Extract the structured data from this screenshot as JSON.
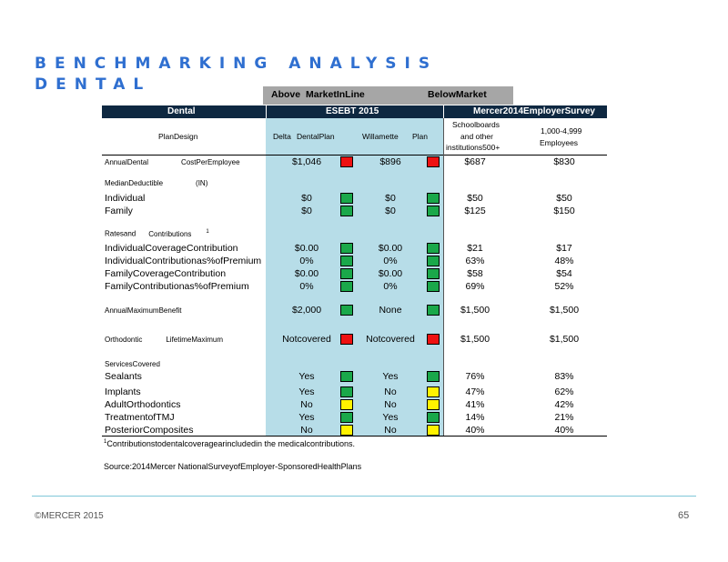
{
  "title_line1": "BENCHMARKING ANALYSIS",
  "title_line2": "DENTAL",
  "legend": {
    "above": "Above",
    "inline": "MarketInLine",
    "below": "BelowMarket"
  },
  "colors": {
    "red": "#ee1111",
    "green": "#1aa84a",
    "yellow": "#fff200",
    "header": "#0e2841",
    "shade": "#b7dde8",
    "title": "#2f6fd0"
  },
  "header": {
    "dental": "Dental",
    "esebt": "ESEBT 2015",
    "mercer": "Mercer2014EmployerSurvey"
  },
  "subheader": {
    "plan_design": "PlanDesign",
    "delta": "Delta",
    "delta_plan": "DentalPlan",
    "willamette": "Willamette",
    "willamette_plan": "Plan",
    "schoolboards_1": "Schoolboards",
    "schoolboards_2": "and other",
    "schoolboards_3": "institutions500+",
    "employees_1": "1,000-4,999",
    "employees_2": "Employees"
  },
  "sections": {
    "deductible": "MedianDeductible",
    "deductible_tag": "(IN)",
    "rates": "Ratesand",
    "rates_2": "Contributions",
    "rates_sup": "1",
    "services": "ServicesCovered"
  },
  "rows": [
    {
      "label": "AnnualDental",
      "label_b": "CostPerEmployee",
      "small": true,
      "delta": "$1,046",
      "sq1": "red",
      "willamette": "$896",
      "sq2": "red",
      "school": "$687",
      "emp": "$830"
    },
    {
      "label": "Individual",
      "delta": "$0",
      "sq1": "green",
      "willamette": "$0",
      "sq2": "green",
      "school": "$50",
      "emp": "$50"
    },
    {
      "label": "Family",
      "delta": "$0",
      "sq1": "green",
      "willamette": "$0",
      "sq2": "green",
      "school": "$125",
      "emp": "$150"
    },
    {
      "label": "IndividualCoverageContribution",
      "delta": "$0.00",
      "sq1": "green",
      "willamette": "$0.00",
      "sq2": "green",
      "school": "$21",
      "emp": "$17"
    },
    {
      "label": "IndividualContributionas%ofPremium",
      "delta": "0%",
      "sq1": "green",
      "willamette": "0%",
      "sq2": "green",
      "school": "63%",
      "emp": "48%"
    },
    {
      "label": "FamilyCoverageContribution",
      "delta": "$0.00",
      "sq1": "green",
      "willamette": "$0.00",
      "sq2": "green",
      "school": "$58",
      "emp": "$54"
    },
    {
      "label": "FamilyContributionas%ofPremium",
      "delta": "0%",
      "sq1": "green",
      "willamette": "0%",
      "sq2": "green",
      "school": "69%",
      "emp": "52%"
    },
    {
      "label": "AnnualMaximumBenefit",
      "small": true,
      "delta": "$2,000",
      "sq1": "green",
      "willamette": "None",
      "sq2": "green",
      "school": "$1,500",
      "emp": "$1,500"
    },
    {
      "label": "Orthodontic",
      "label_b": "LifetimeMaximum",
      "small": true,
      "delta": "Notcovered",
      "sq1": "red",
      "willamette": "Notcovered",
      "sq2": "red",
      "school": "$1,500",
      "emp": "$1,500"
    },
    {
      "label": "Sealants",
      "delta": "Yes",
      "sq1": "green",
      "willamette": "Yes",
      "sq2": "green",
      "school": "76%",
      "emp": "83%"
    },
    {
      "label": "Implants",
      "delta": "Yes",
      "sq1": "green",
      "willamette": "No",
      "sq2": "yellow",
      "school": "47%",
      "emp": "62%"
    },
    {
      "label": "AdultOrthodontics",
      "delta": "No",
      "sq1": "yellow",
      "willamette": "No",
      "sq2": "yellow",
      "school": "41%",
      "emp": "42%"
    },
    {
      "label": "TreatmentofTMJ",
      "delta": "Yes",
      "sq1": "green",
      "willamette": "Yes",
      "sq2": "green",
      "school": "14%",
      "emp": "21%"
    },
    {
      "label": "PosteriorComposites",
      "delta": "No",
      "sq1": "yellow",
      "willamette": "No",
      "sq2": "yellow",
      "school": "40%",
      "emp": "40%"
    }
  ],
  "footnote_sup": "1",
  "footnote": "Contributionstodentalcoveragearincludedin the medicalcontributions.",
  "source": "Source:2014Mercer NationalSurveyofEmployer-SponsoredHealthPlans",
  "copyright": "©MERCER  2015",
  "page_number": "65"
}
